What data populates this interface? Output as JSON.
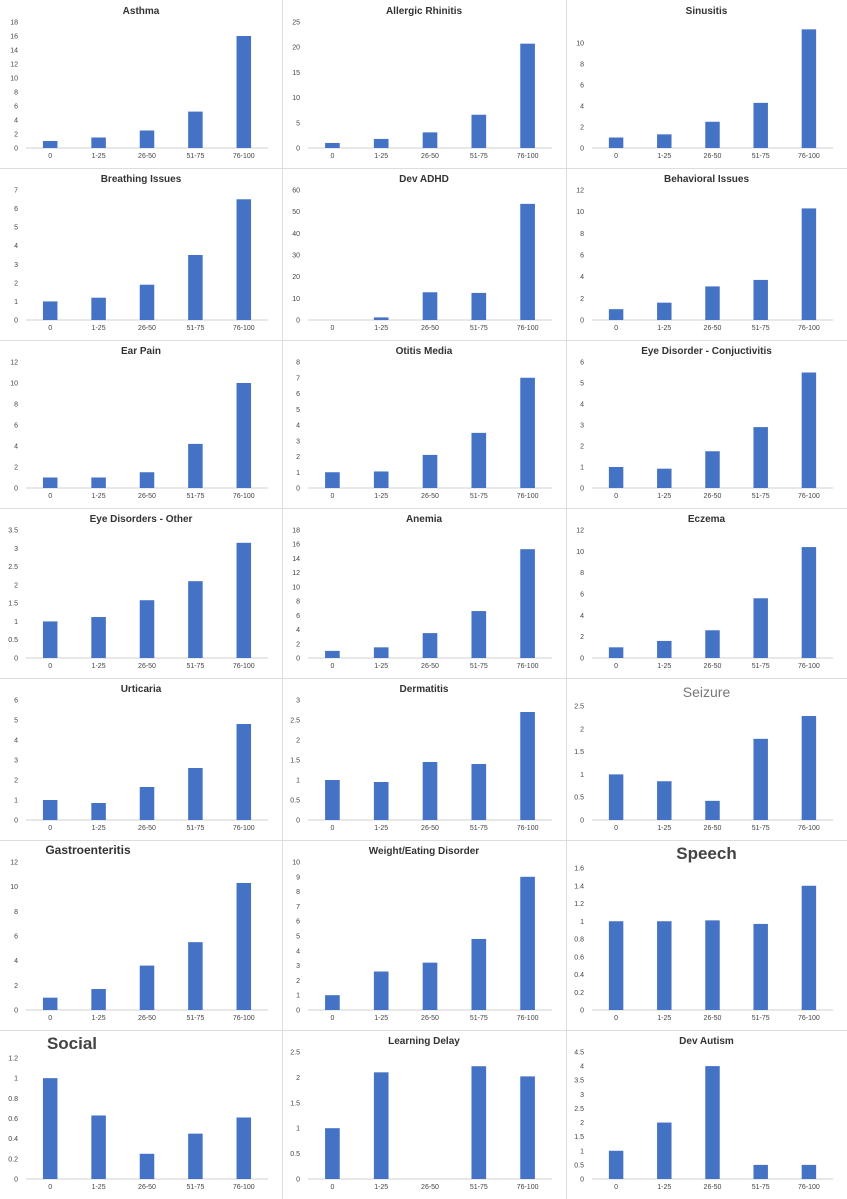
{
  "colors": {
    "bar": "#4472C4",
    "axis": "#d0d0d0",
    "text": "#444444"
  },
  "chart_data": [
    {
      "type": "bar",
      "title": "Asthma",
      "categories": [
        "0",
        "1-25",
        "26-50",
        "51-75",
        "76-100"
      ],
      "values": [
        1,
        1.5,
        2.5,
        5.2,
        16
      ],
      "yticks": [
        "0",
        "2",
        "4",
        "6",
        "8",
        "10",
        "12",
        "14",
        "16",
        "18"
      ],
      "ylim": [
        0,
        18
      ],
      "grid": false,
      "legend": "none"
    },
    {
      "type": "bar",
      "title": "Allergic Rhinitis",
      "categories": [
        "0",
        "1-25",
        "26-50",
        "51-75",
        "76-100"
      ],
      "values": [
        1,
        1.8,
        3.1,
        6.6,
        20.7
      ],
      "yticks": [
        "0",
        "5",
        "10",
        "15",
        "20",
        "25"
      ],
      "ylim": [
        0,
        25
      ],
      "grid": false,
      "legend": "none"
    },
    {
      "type": "bar",
      "title": "Sinusitis",
      "categories": [
        "0",
        "1-25",
        "26-50",
        "51-75",
        "76-100"
      ],
      "values": [
        1,
        1.3,
        2.5,
        4.3,
        11.3
      ],
      "yticks": [
        "0",
        "2",
        "4",
        "6",
        "8",
        "10"
      ],
      "ylim": [
        0,
        12
      ],
      "grid": false,
      "legend": "none"
    },
    {
      "type": "bar",
      "title": "Breathing Issues",
      "categories": [
        "0",
        "1-25",
        "26-50",
        "51-75",
        "76-100"
      ],
      "values": [
        1,
        1.2,
        1.9,
        3.5,
        6.5
      ],
      "yticks": [
        "0",
        "1",
        "2",
        "3",
        "4",
        "5",
        "6",
        "7"
      ],
      "ylim": [
        0,
        7
      ],
      "grid": false,
      "legend": "none"
    },
    {
      "type": "bar",
      "title": "Dev ADHD",
      "categories": [
        "0",
        "1-25",
        "26-50",
        "51-75",
        "76-100"
      ],
      "values": [
        0,
        1.2,
        12.8,
        12.5,
        53.6
      ],
      "yticks": [
        "0",
        "10",
        "20",
        "30",
        "40",
        "50",
        "60"
      ],
      "ylim": [
        0,
        60
      ],
      "grid": false,
      "legend": "none"
    },
    {
      "type": "bar",
      "title": "Behavioral Issues",
      "categories": [
        "0",
        "1-25",
        "26-50",
        "51-75",
        "76-100"
      ],
      "values": [
        1,
        1.6,
        3.1,
        3.7,
        10.3
      ],
      "yticks": [
        "0",
        "2",
        "4",
        "6",
        "8",
        "10",
        "12"
      ],
      "ylim": [
        0,
        12
      ],
      "grid": false,
      "legend": "none"
    },
    {
      "type": "bar",
      "title": "Ear Pain",
      "categories": [
        "0",
        "1-25",
        "26-50",
        "51-75",
        "76-100"
      ],
      "values": [
        1,
        1.0,
        1.5,
        4.2,
        10
      ],
      "yticks": [
        "0",
        "2",
        "4",
        "6",
        "8",
        "10",
        "12"
      ],
      "ylim": [
        0,
        12
      ],
      "grid": false,
      "legend": "none"
    },
    {
      "type": "bar",
      "title": "Otitis Media",
      "categories": [
        "0",
        "1-25",
        "26-50",
        "51-75",
        "76-100"
      ],
      "values": [
        1,
        1.05,
        2.1,
        3.5,
        7
      ],
      "yticks": [
        "0",
        "1",
        "2",
        "3",
        "4",
        "5",
        "6",
        "7",
        "8"
      ],
      "ylim": [
        0,
        8
      ],
      "grid": false,
      "legend": "none"
    },
    {
      "type": "bar",
      "title": "Eye Disorder - Conjuctivitis",
      "categories": [
        "0",
        "1-25",
        "26-50",
        "51-75",
        "76-100"
      ],
      "values": [
        1,
        0.92,
        1.75,
        2.9,
        5.5
      ],
      "yticks": [
        "0",
        "1",
        "2",
        "3",
        "4",
        "5",
        "6"
      ],
      "ylim": [
        0,
        6
      ],
      "grid": false,
      "legend": "none"
    },
    {
      "type": "bar",
      "title": "Eye Disorders - Other",
      "categories": [
        "0",
        "1-25",
        "26-50",
        "51-75",
        "76-100"
      ],
      "values": [
        1,
        1.12,
        1.58,
        2.1,
        3.15
      ],
      "yticks": [
        "0",
        "0.5",
        "1",
        "1.5",
        "2",
        "2.5",
        "3",
        "3.5"
      ],
      "ylim": [
        0,
        3.5
      ],
      "grid": false,
      "legend": "none"
    },
    {
      "type": "bar",
      "title": "Anemia",
      "categories": [
        "0",
        "1-25",
        "26-50",
        "51-75",
        "76-100"
      ],
      "values": [
        1,
        1.5,
        3.5,
        6.6,
        15.3
      ],
      "yticks": [
        "0",
        "2",
        "4",
        "6",
        "8",
        "10",
        "12",
        "14",
        "16",
        "18"
      ],
      "ylim": [
        0,
        18
      ],
      "grid": false,
      "legend": "none"
    },
    {
      "type": "bar",
      "title": "Eczema",
      "categories": [
        "0",
        "1-25",
        "26-50",
        "51-75",
        "76-100"
      ],
      "values": [
        1,
        1.6,
        2.6,
        5.6,
        10.4
      ],
      "yticks": [
        "0",
        "2",
        "4",
        "6",
        "8",
        "10",
        "12"
      ],
      "ylim": [
        0,
        12
      ],
      "grid": false,
      "legend": "none"
    },
    {
      "type": "bar",
      "title": "Urticaria",
      "categories": [
        "0",
        "1-25",
        "26-50",
        "51-75",
        "76-100"
      ],
      "values": [
        1,
        0.85,
        1.65,
        2.6,
        4.8
      ],
      "yticks": [
        "0",
        "1",
        "2",
        "3",
        "4",
        "5",
        "6"
      ],
      "ylim": [
        0,
        6
      ],
      "grid": false,
      "legend": "none"
    },
    {
      "type": "bar",
      "title": "Dermatitis",
      "categories": [
        "0",
        "1-25",
        "26-50",
        "51-75",
        "76-100"
      ],
      "values": [
        1,
        0.95,
        1.45,
        1.4,
        2.7
      ],
      "yticks": [
        "0",
        "0.5",
        "1",
        "1.5",
        "2",
        "2.5",
        "3"
      ],
      "ylim": [
        0,
        3
      ],
      "grid": false,
      "legend": "none"
    },
    {
      "type": "bar",
      "title": "Seizure",
      "categories": [
        "0",
        "1-25",
        "26-50",
        "51-75",
        "76-100"
      ],
      "values": [
        1,
        0.85,
        0.42,
        1.78,
        2.28
      ],
      "yticks": [
        "0",
        "0.5",
        "1",
        "1.5",
        "2",
        "2.5"
      ],
      "ylim": [
        0,
        2.5
      ],
      "grid": false,
      "legend": "none"
    },
    {
      "type": "bar",
      "title": "Gastroenteritis",
      "categories": [
        "0",
        "1-25",
        "26-50",
        "51-75",
        "76-100"
      ],
      "values": [
        1,
        1.7,
        3.6,
        5.5,
        10.3
      ],
      "yticks": [
        "0",
        "2",
        "4",
        "6",
        "8",
        "10",
        "12"
      ],
      "ylim": [
        0,
        12
      ],
      "grid": false,
      "legend": "none"
    },
    {
      "type": "bar",
      "title": "Weight/Eating Disorder",
      "categories": [
        "0",
        "1-25",
        "26-50",
        "51-75",
        "76-100"
      ],
      "values": [
        1,
        2.6,
        3.2,
        4.8,
        9
      ],
      "yticks": [
        "0",
        "1",
        "2",
        "3",
        "4",
        "5",
        "6",
        "7",
        "8",
        "9",
        "10"
      ],
      "ylim": [
        0,
        10
      ],
      "grid": false,
      "legend": "none"
    },
    {
      "type": "bar",
      "title": "Speech",
      "categories": [
        "0",
        "1-25",
        "26-50",
        "51-75",
        "76-100"
      ],
      "values": [
        1,
        1,
        1.01,
        0.97,
        1.4
      ],
      "yticks": [
        "0",
        "0.2",
        "0.4",
        "0.6",
        "0.8",
        "1",
        "1.2",
        "1.4",
        "1.6"
      ],
      "ylim": [
        0,
        1.6
      ],
      "grid": false,
      "legend": "none"
    },
    {
      "type": "bar",
      "title": "Social",
      "categories": [
        "0",
        "1-25",
        "26-50",
        "51-75",
        "76-100"
      ],
      "values": [
        1,
        0.63,
        0.25,
        0.45,
        0.61
      ],
      "yticks": [
        "0",
        "0.2",
        "0.4",
        "0.6",
        "0.8",
        "1",
        "1.2"
      ],
      "ylim": [
        0,
        1.2
      ],
      "grid": false,
      "legend": "none"
    },
    {
      "type": "bar",
      "title": "Learning Delay",
      "categories": [
        "0",
        "1-25",
        "26-50",
        "51-75",
        "76-100"
      ],
      "values": [
        1,
        2.1,
        0,
        2.22,
        2.02
      ],
      "yticks": [
        "0",
        "0.5",
        "1",
        "1.5",
        "2",
        "2.5"
      ],
      "ylim": [
        0,
        2.5
      ],
      "grid": false,
      "legend": "none"
    },
    {
      "type": "bar",
      "title": "Dev Autism",
      "categories": [
        "0",
        "1-25",
        "26-50",
        "51-75",
        "76-100"
      ],
      "values": [
        1,
        2,
        4,
        0.5,
        0.5
      ],
      "yticks": [
        "0",
        "0.5",
        "1",
        "1.5",
        "2",
        "2.5",
        "3",
        "3.5",
        "4",
        "4.5"
      ],
      "ylim": [
        0,
        4.5
      ],
      "grid": false,
      "legend": "none"
    }
  ]
}
